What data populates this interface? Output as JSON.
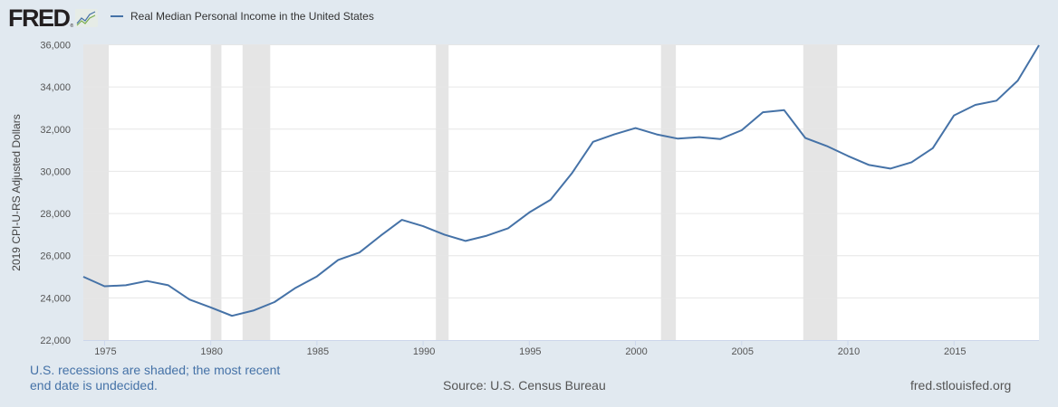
{
  "header": {
    "logo_text": "FRED",
    "logo_reg": "®",
    "legend_label": "Real Median Personal Income in the United States"
  },
  "colors": {
    "background": "#e1e9f0",
    "plot_background": "#ffffff",
    "line": "#4572a7",
    "recession_shade": "#e5e5e5",
    "gridline": "#e6e6e6",
    "note_text": "#4572a7"
  },
  "footer": {
    "note": "U.S. recessions are shaded; the most recent end date is undecided.",
    "source": "Source: U.S. Census Bureau",
    "url": "fred.stlouisfed.org"
  },
  "chart_data": {
    "type": "line",
    "title": "Real Median Personal Income in the United States",
    "xlabel": "",
    "ylabel": "2019 CPI-U-RS Adjusted Dollars",
    "xlim": [
      1974,
      2019
    ],
    "ylim": [
      22000,
      36000
    ],
    "x_ticks": [
      1975,
      1980,
      1985,
      1990,
      1995,
      2000,
      2005,
      2010,
      2015
    ],
    "y_ticks": [
      22000,
      24000,
      26000,
      28000,
      30000,
      32000,
      34000,
      36000
    ],
    "y_tick_labels": [
      "22,000",
      "24,000",
      "26,000",
      "28,000",
      "30,000",
      "32,000",
      "34,000",
      "36,000"
    ],
    "grid": "horizontal",
    "legend_position": "top",
    "x": [
      1974,
      1975,
      1976,
      1977,
      1978,
      1979,
      1980,
      1981,
      1982,
      1983,
      1984,
      1985,
      1986,
      1987,
      1988,
      1989,
      1990,
      1991,
      1992,
      1993,
      1994,
      1995,
      1996,
      1997,
      1998,
      1999,
      2000,
      2001,
      2002,
      2003,
      2004,
      2005,
      2006,
      2007,
      2008,
      2009,
      2010,
      2011,
      2012,
      2013,
      2014,
      2015,
      2016,
      2017,
      2018,
      2019
    ],
    "series": [
      {
        "name": "Real Median Personal Income in the United States",
        "values": [
          25000,
          24550,
          24600,
          24800,
          24600,
          23920,
          23550,
          23150,
          23400,
          23800,
          24480,
          25020,
          25800,
          26150,
          26950,
          27700,
          27400,
          27000,
          26700,
          26950,
          27300,
          28050,
          28650,
          29900,
          31400,
          31750,
          32050,
          31750,
          31550,
          31620,
          31530,
          31950,
          32800,
          32900,
          31580,
          31200,
          30730,
          30300,
          30130,
          30430,
          31100,
          32650,
          33150,
          33350,
          34300,
          35980
        ]
      }
    ],
    "recessions": [
      [
        1973.9,
        1975.2
      ],
      [
        1980.0,
        1980.5
      ],
      [
        1981.5,
        1982.8
      ],
      [
        1990.6,
        1991.2
      ],
      [
        2001.2,
        2001.9
      ],
      [
        2007.9,
        2009.5
      ]
    ],
    "annotations": [
      "U.S. recessions are shaded; the most recent end date is undecided."
    ]
  }
}
